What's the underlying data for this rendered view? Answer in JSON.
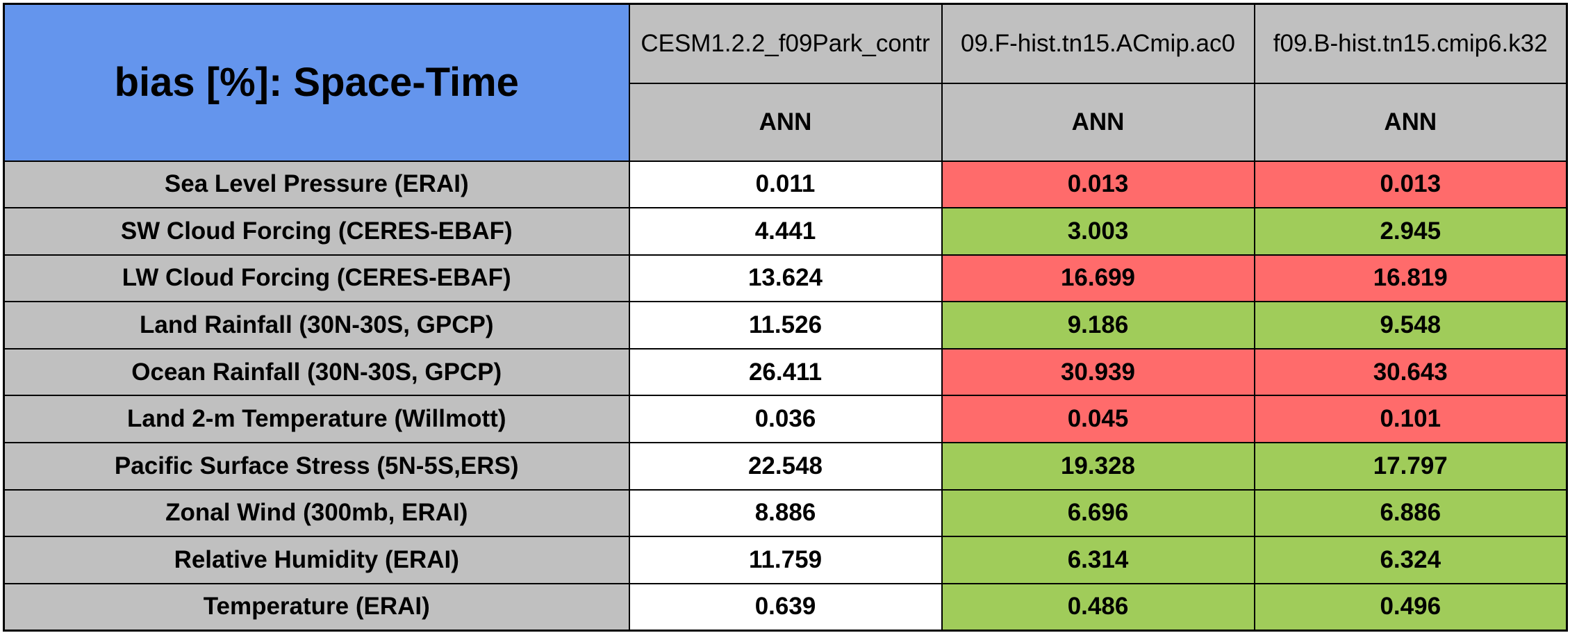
{
  "chart_data": {
    "type": "table",
    "title": "bias [%]: Space-Time",
    "columns": [
      {
        "name": "CESM1.2.2_f09Park_contr",
        "season": "ANN"
      },
      {
        "name": "09.F-hist.tn15.ACmip.ac0",
        "season": "ANN"
      },
      {
        "name": "f09.B-hist.tn15.cmip6.k32",
        "season": "ANN"
      }
    ],
    "rows": [
      {
        "label": "Sea Level Pressure (ERAI)",
        "values": [
          "0.011",
          "0.013",
          "0.013"
        ],
        "status": [
          "base",
          "worse",
          "worse"
        ]
      },
      {
        "label": "SW Cloud Forcing (CERES-EBAF)",
        "values": [
          "4.441",
          "3.003",
          "2.945"
        ],
        "status": [
          "base",
          "better",
          "better"
        ]
      },
      {
        "label": "LW Cloud Forcing (CERES-EBAF)",
        "values": [
          "13.624",
          "16.699",
          "16.819"
        ],
        "status": [
          "base",
          "worse",
          "worse"
        ]
      },
      {
        "label": "Land Rainfall (30N-30S, GPCP)",
        "values": [
          "11.526",
          "9.186",
          "9.548"
        ],
        "status": [
          "base",
          "better",
          "better"
        ]
      },
      {
        "label": "Ocean Rainfall (30N-30S, GPCP)",
        "values": [
          "26.411",
          "30.939",
          "30.643"
        ],
        "status": [
          "base",
          "worse",
          "worse"
        ]
      },
      {
        "label": "Land 2-m Temperature (Willmott)",
        "values": [
          "0.036",
          "0.045",
          "0.101"
        ],
        "status": [
          "base",
          "worse",
          "worse"
        ]
      },
      {
        "label": "Pacific Surface Stress (5N-5S,ERS)",
        "values": [
          "22.548",
          "19.328",
          "17.797"
        ],
        "status": [
          "base",
          "better",
          "better"
        ]
      },
      {
        "label": "Zonal Wind (300mb, ERAI)",
        "values": [
          "8.886",
          "6.696",
          "6.886"
        ],
        "status": [
          "base",
          "better",
          "better"
        ]
      },
      {
        "label": "Relative Humidity (ERAI)",
        "values": [
          "11.759",
          "6.314",
          "6.324"
        ],
        "status": [
          "base",
          "better",
          "better"
        ]
      },
      {
        "label": "Temperature (ERAI)",
        "values": [
          "0.639",
          "0.486",
          "0.496"
        ],
        "status": [
          "base",
          "better",
          "better"
        ]
      }
    ],
    "colors": {
      "title_bg": "#6495ED",
      "header_bg": "#C0C0C0",
      "base": "#FFFFFF",
      "better": "#A0CC5A",
      "worse": "#FF6B6B"
    }
  }
}
